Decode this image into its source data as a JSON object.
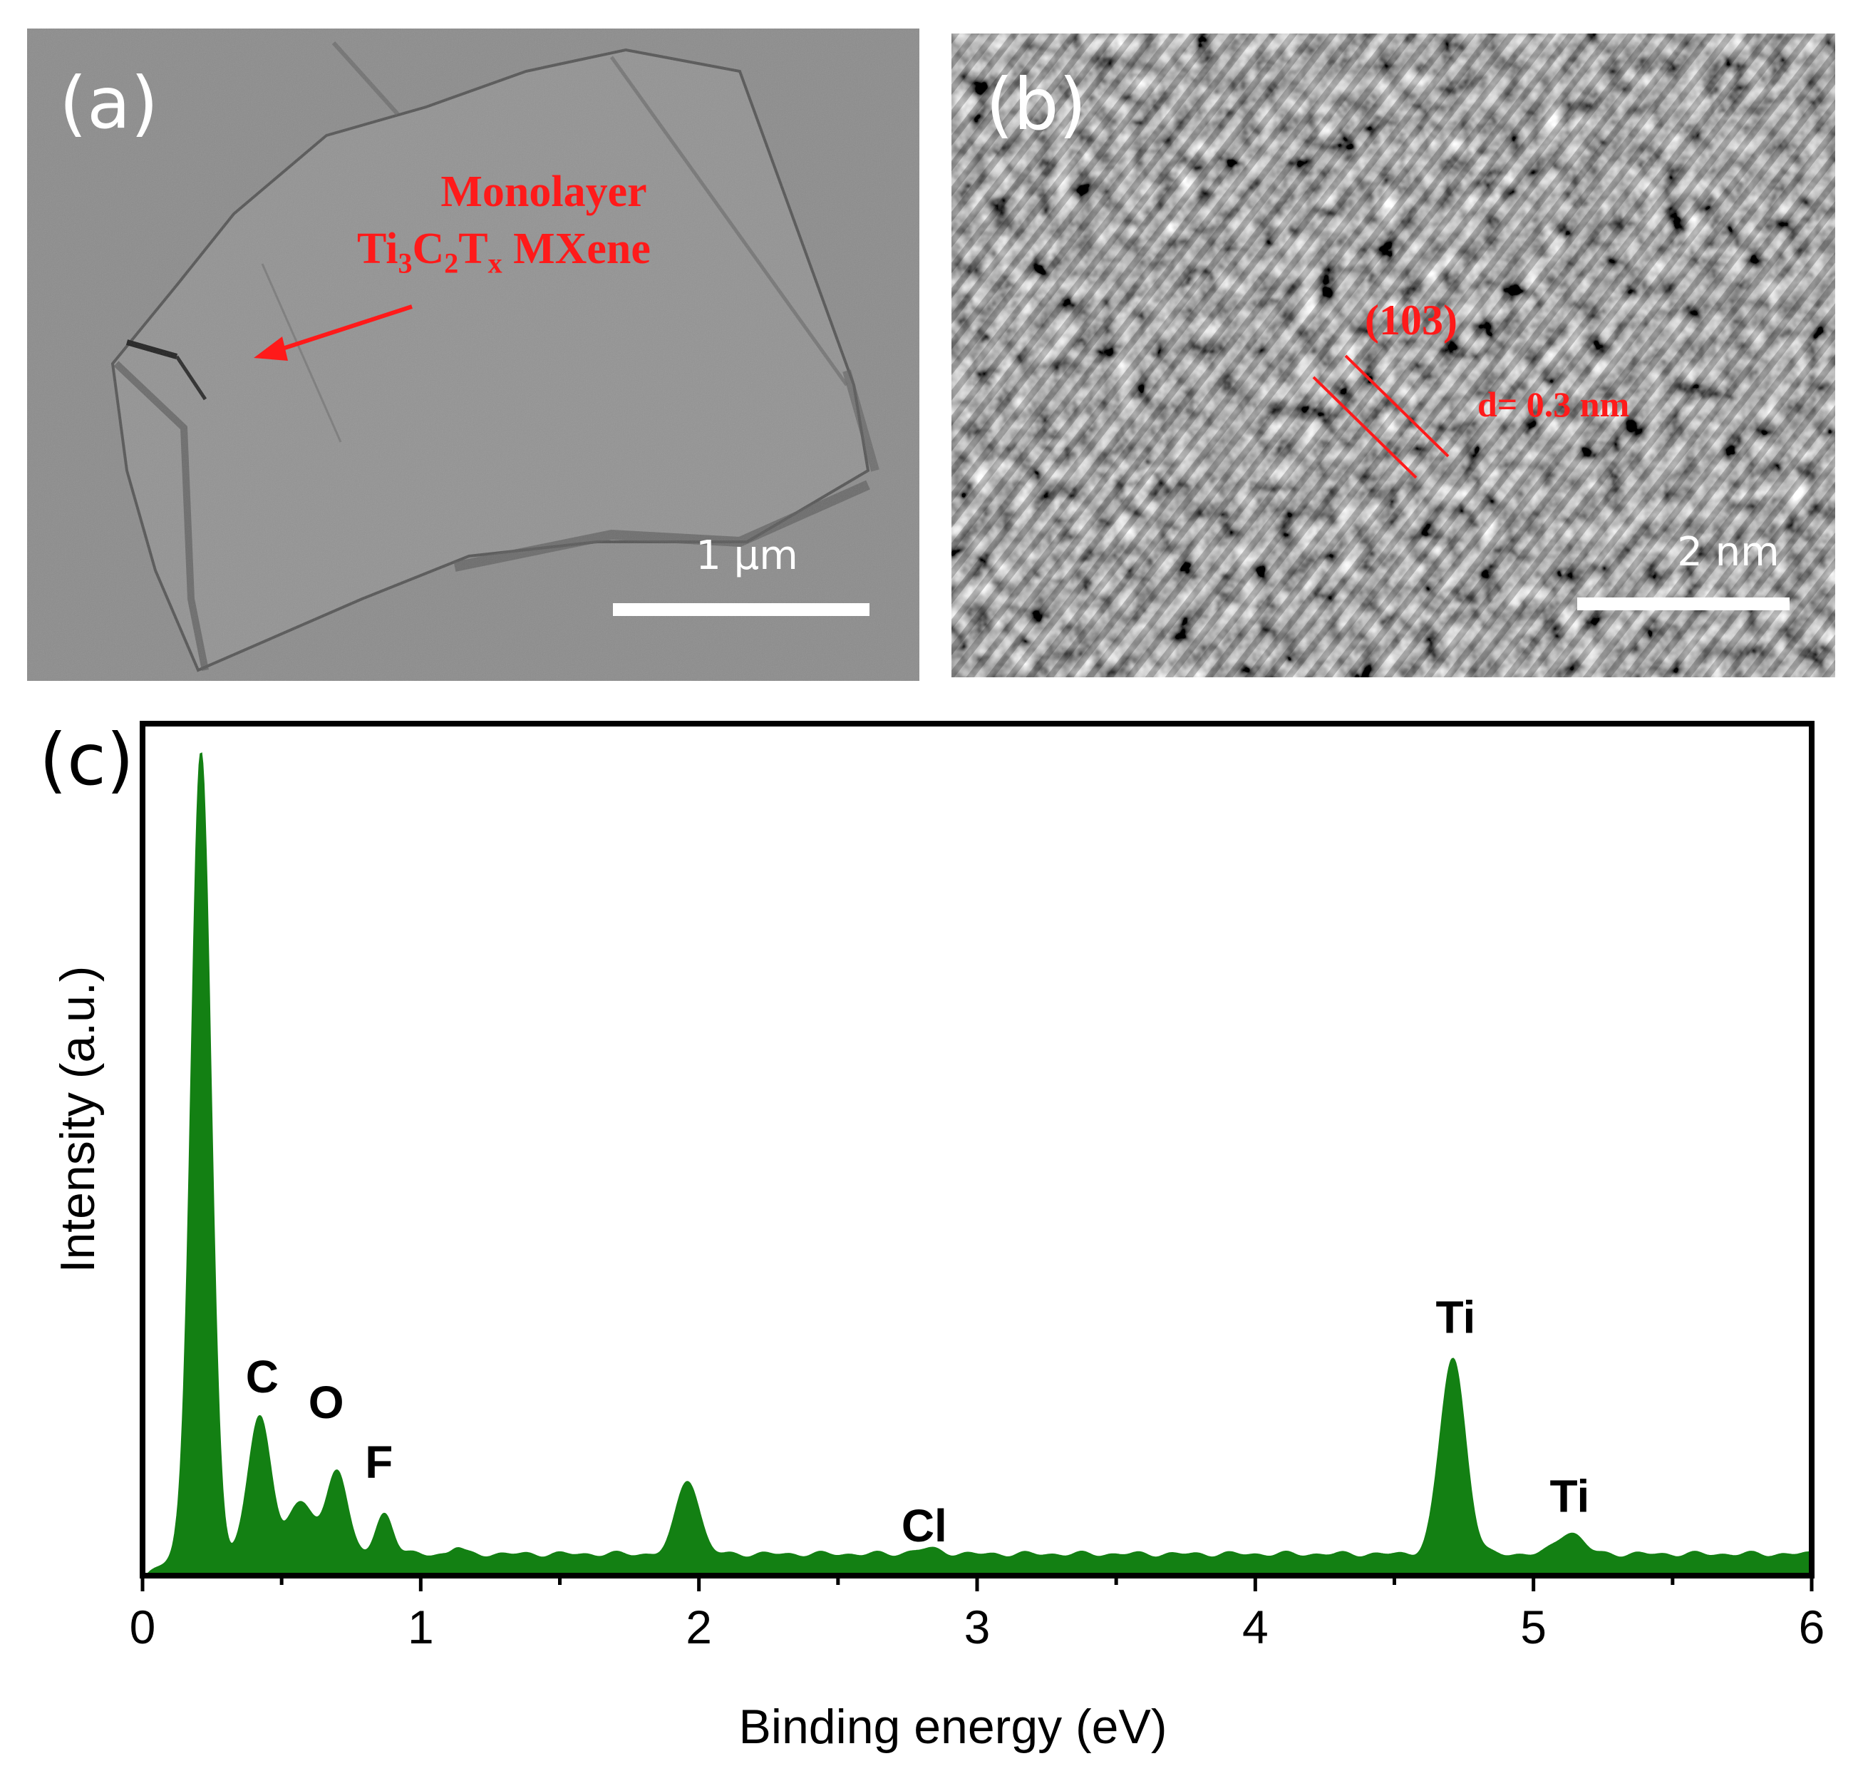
{
  "panel_a": {
    "label": "(a)",
    "annotation_line1": "Monolayer",
    "annotation_line2": "Ti3C2Tx MXene",
    "scale_label": "1 μm"
  },
  "panel_b": {
    "label": "(b)",
    "plane_label": "(103)",
    "spacing_label": "d= 0.3 nm",
    "scale_label": "2 nm"
  },
  "panel_c": {
    "label": "(c)"
  },
  "colors": {
    "spectrum": "#138013",
    "annotation": "#ff1a1a"
  },
  "chart_data": {
    "type": "area",
    "xlabel": "Binding energy (eV)",
    "ylabel": "Intensity (a.u.)",
    "xlim": [
      0,
      6
    ],
    "ylim": [
      0,
      100
    ],
    "xticks": [
      "0",
      "1",
      "2",
      "3",
      "4",
      "5",
      "6"
    ],
    "grid": false,
    "baseline": 2.5,
    "peaks": [
      {
        "x": 0.21,
        "height": 94,
        "width": 0.035
      },
      {
        "x": 0.42,
        "height": 16,
        "width": 0.04
      },
      {
        "x": 0.57,
        "height": 6,
        "width": 0.05
      },
      {
        "x": 0.7,
        "height": 10,
        "width": 0.035
      },
      {
        "x": 0.87,
        "height": 4.8,
        "width": 0.03
      },
      {
        "x": 1.13,
        "height": 0.8,
        "width": 0.02
      },
      {
        "x": 1.96,
        "height": 8.8,
        "width": 0.04
      },
      {
        "x": 2.82,
        "height": 0.6,
        "width": 0.05
      },
      {
        "x": 4.71,
        "height": 23,
        "width": 0.045
      },
      {
        "x": 5.13,
        "height": 2.6,
        "width": 0.045
      }
    ],
    "annotations": [
      {
        "text": "C",
        "x": 0.43,
        "y": 21.5
      },
      {
        "text": "O",
        "x": 0.66,
        "y": 18.5
      },
      {
        "text": "F",
        "x": 0.85,
        "y": 11.5
      },
      {
        "text": "Cl",
        "x": 2.81,
        "y": 4
      },
      {
        "text": "Ti",
        "x": 4.72,
        "y": 28.5
      },
      {
        "text": "Ti",
        "x": 5.13,
        "y": 7.5
      }
    ]
  }
}
